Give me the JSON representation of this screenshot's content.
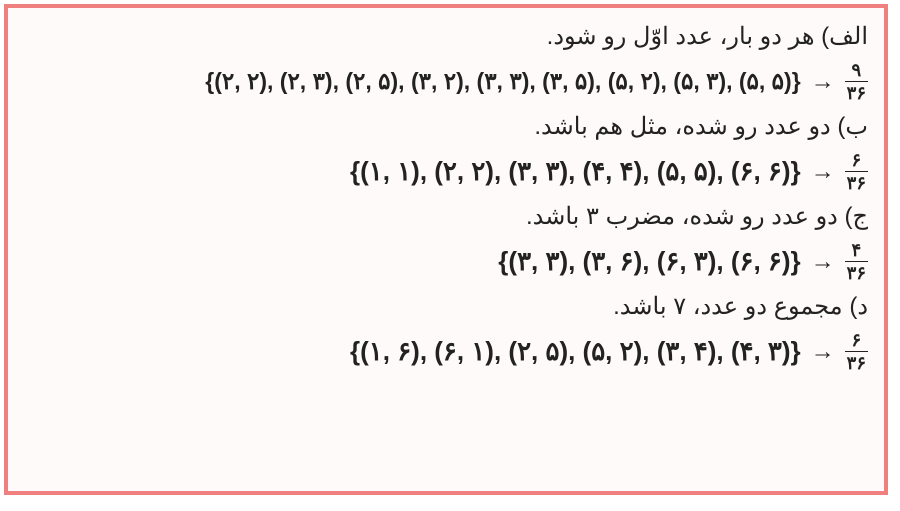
{
  "border_color": "#f08080",
  "background_color": "#fffafa",
  "text_color": "#222222",
  "font_size_text": 24,
  "font_size_math": 26,
  "items": {
    "a": {
      "label": "الف) هر دو بار، عدد اوّل رو شود.",
      "set": "{(۲, ۲), (۲, ۳), (۲, ۵), (۳, ۲), (۳, ۳), (۳, ۵), (۵, ۲), (۵, ۳), (۵, ۵)}",
      "num": "۹",
      "den": "۳۶"
    },
    "b": {
      "label": "ب) دو عدد رو شده، مثل هم باشد.",
      "set": "{(۱, ۱), (۲, ۲), (۳, ۳), (۴, ۴), (۵, ۵), (۶, ۶)}",
      "num": "۶",
      "den": "۳۶"
    },
    "c": {
      "label": "ج) دو عدد رو شده، مضرب ۳ باشد.",
      "set": "{(۳, ۳), (۳, ۶), (۶, ۳), (۶, ۶)}",
      "num": "۴",
      "den": "۳۶"
    },
    "d": {
      "label": "د) مجموع دو عدد، ۷ باشد.",
      "set": "{(۱, ۶), (۶, ۱), (۲, ۵), (۵, ۲), (۳, ۴), (۴, ۳)}",
      "num": "۶",
      "den": "۳۶"
    }
  },
  "arrow": "→"
}
